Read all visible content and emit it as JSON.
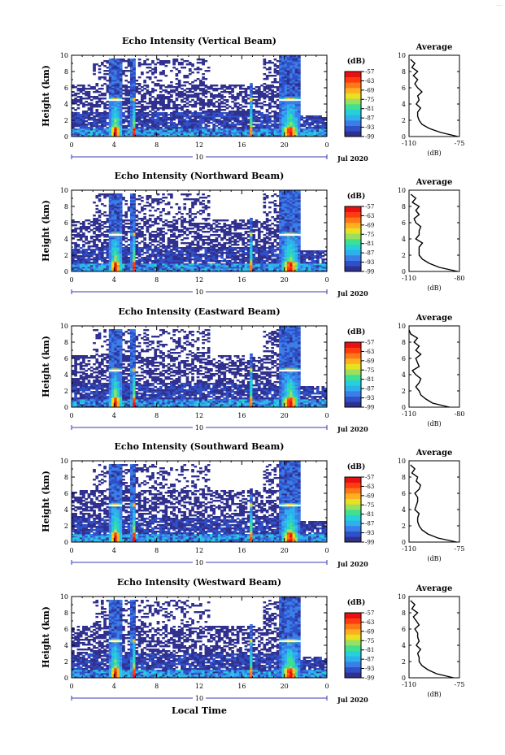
{
  "corner_mark": "—",
  "x_label": "Local Time",
  "date_label": "Jul 2020",
  "colorbar_unit": "(dB)",
  "colorbar_ticks": [
    "-57",
    "-63",
    "-69",
    "-75",
    "-81",
    "-87",
    "-93",
    "-99"
  ],
  "colors": {
    "scale": [
      "#30308f",
      "#3050c8",
      "#3a7ee8",
      "#2fb0ee",
      "#26d0d8",
      "#40e090",
      "#9ae060",
      "#e8e020",
      "#ffb020",
      "#ff7818",
      "#ff3c10",
      "#e81010"
    ]
  },
  "chart_data": [
    {
      "type": "heatmap",
      "title": "Echo Intensity (Vertical Beam)",
      "ylabel": "Height (km)",
      "xlim": [
        0,
        24
      ],
      "ylim": [
        0,
        10
      ],
      "xticks": [
        "0",
        "4",
        "8",
        "12",
        "16",
        "20",
        "0"
      ],
      "yticks": [
        "0",
        "2",
        "4",
        "6",
        "8",
        "10"
      ],
      "period_label": "10",
      "colorbar": {
        "unit": "(dB)",
        "min": -99,
        "max": -57
      },
      "features": {
        "rain_hours": [
          [
            3.5,
            4.8
          ],
          [
            5.6,
            6.1
          ],
          [
            16.8,
            17.0
          ],
          [
            19.6,
            21.5
          ]
        ],
        "bright_band_km": 4.5
      },
      "average_profile": {
        "title": "Average",
        "xlabel": "(dB)",
        "xlim": [
          -110,
          -75
        ],
        "xticks": [
          "-110",
          "-75"
        ],
        "yticks": [
          "0",
          "2",
          "4",
          "6",
          "8",
          "10"
        ],
        "height_km": [
          0,
          0.5,
          1,
          1.5,
          2,
          2.5,
          3,
          3.5,
          4,
          4.5,
          5,
          5.5,
          6,
          6.5,
          7,
          7.5,
          8,
          8.5,
          9,
          9.5
        ],
        "db": [
          -76,
          -88,
          -96,
          -101,
          -103,
          -104,
          -104,
          -102,
          -105,
          -103,
          -104,
          -101,
          -104,
          -106,
          -104,
          -107,
          -104,
          -108,
          -106,
          -109
        ]
      }
    },
    {
      "type": "heatmap",
      "title": "Echo Intensity (Northward Beam)",
      "ylabel": "Height (km)",
      "xlim": [
        0,
        24
      ],
      "ylim": [
        0,
        10
      ],
      "xticks": [
        "0",
        "4",
        "8",
        "12",
        "16",
        "20",
        "0"
      ],
      "yticks": [
        "0",
        "2",
        "4",
        "6",
        "8",
        "10"
      ],
      "period_label": "10",
      "colorbar": {
        "unit": "(dB)",
        "min": -99,
        "max": -57
      },
      "features": {
        "rain_hours": [
          [
            3.5,
            4.8
          ],
          [
            5.6,
            6.1
          ],
          [
            16.8,
            17.0
          ],
          [
            19.6,
            21.5
          ]
        ],
        "bright_band_km": 4.5
      },
      "average_profile": {
        "title": "Average",
        "xlabel": "(dB)",
        "xlim": [
          -110,
          -80
        ],
        "xticks": [
          "-110",
          "-80"
        ],
        "yticks": [
          "0",
          "2",
          "4",
          "6",
          "8",
          "10"
        ],
        "height_km": [
          0,
          0.5,
          1,
          1.5,
          2,
          2.5,
          3,
          3.5,
          4,
          4.5,
          5,
          5.5,
          6,
          6.5,
          7,
          7.5,
          8,
          8.5,
          9,
          9.5
        ],
        "db": [
          -81,
          -92,
          -98,
          -102,
          -104,
          -104,
          -104,
          -102,
          -106,
          -104,
          -104,
          -103,
          -106,
          -107,
          -104,
          -106,
          -104,
          -108,
          -106,
          -109
        ]
      }
    },
    {
      "type": "heatmap",
      "title": "Echo Intensity (Eastward Beam)",
      "ylabel": "Height (km)",
      "xlim": [
        0,
        24
      ],
      "ylim": [
        0,
        10
      ],
      "xticks": [
        "0",
        "4",
        "8",
        "12",
        "16",
        "20",
        "0"
      ],
      "yticks": [
        "0",
        "2",
        "4",
        "6",
        "8",
        "10"
      ],
      "period_label": "10",
      "colorbar": {
        "unit": "(dB)",
        "min": -99,
        "max": -57
      },
      "features": {
        "rain_hours": [
          [
            3.5,
            4.8
          ],
          [
            5.6,
            6.1
          ],
          [
            16.8,
            17.0
          ],
          [
            19.6,
            21.5
          ]
        ],
        "bright_band_km": 4.5
      },
      "average_profile": {
        "title": "Average",
        "xlabel": "(dB)",
        "xlim": [
          -110,
          -80
        ],
        "xticks": [
          "-110",
          "-80"
        ],
        "yticks": [
          "0",
          "2",
          "4",
          "6",
          "8",
          "10"
        ],
        "height_km": [
          0,
          0.5,
          1,
          1.5,
          2,
          2.5,
          3,
          3.5,
          4,
          4.5,
          5,
          5.5,
          6,
          6.5,
          7,
          7.5,
          8,
          8.5,
          9,
          9.5
        ],
        "db": [
          -86,
          -96,
          -100,
          -103,
          -104,
          -106,
          -104,
          -103,
          -106,
          -108,
          -104,
          -105,
          -106,
          -103,
          -106,
          -104,
          -107,
          -105,
          -109,
          -110
        ]
      }
    },
    {
      "type": "heatmap",
      "title": "Echo Intensity (Southward Beam)",
      "ylabel": "Height (km)",
      "xlim": [
        0,
        24
      ],
      "ylim": [
        0,
        10
      ],
      "xticks": [
        "0",
        "4",
        "8",
        "12",
        "16",
        "20",
        "0"
      ],
      "yticks": [
        "0",
        "2",
        "4",
        "6",
        "8",
        "10"
      ],
      "period_label": "10",
      "colorbar": {
        "unit": "(dB)",
        "min": -99,
        "max": -57
      },
      "features": {
        "rain_hours": [
          [
            3.5,
            4.8
          ],
          [
            5.6,
            6.1
          ],
          [
            16.8,
            17.0
          ],
          [
            19.6,
            21.5
          ]
        ],
        "bright_band_km": 4.5
      },
      "average_profile": {
        "title": "Average",
        "xlabel": "(dB)",
        "xlim": [
          -110,
          -75
        ],
        "xticks": [
          "-110",
          "-75"
        ],
        "yticks": [
          "0",
          "2",
          "4",
          "6",
          "8",
          "10"
        ],
        "height_km": [
          0,
          0.5,
          1,
          1.5,
          2,
          2.5,
          3,
          3.5,
          4,
          4.5,
          5,
          5.5,
          6,
          6.5,
          7,
          7.5,
          8,
          8.5,
          9,
          9.5
        ],
        "db": [
          -77,
          -90,
          -97,
          -101,
          -103,
          -104,
          -104,
          -103,
          -106,
          -105,
          -104,
          -104,
          -106,
          -103,
          -102,
          -105,
          -104,
          -108,
          -106,
          -109
        ]
      }
    },
    {
      "type": "heatmap",
      "title": "Echo Intensity (Westward Beam)",
      "ylabel": "Height (km)",
      "xlim": [
        0,
        24
      ],
      "ylim": [
        0,
        10
      ],
      "xticks": [
        "0",
        "4",
        "8",
        "12",
        "16",
        "20",
        "0"
      ],
      "yticks": [
        "0",
        "2",
        "4",
        "6",
        "8",
        "10"
      ],
      "period_label": "10",
      "colorbar": {
        "unit": "(dB)",
        "min": -99,
        "max": -57
      },
      "features": {
        "rain_hours": [
          [
            3.5,
            4.8
          ],
          [
            5.6,
            6.1
          ],
          [
            16.8,
            17.0
          ],
          [
            19.6,
            21.5
          ]
        ],
        "bright_band_km": 4.5
      },
      "average_profile": {
        "title": "Average",
        "xlabel": "(dB)",
        "xlim": [
          -110,
          -75
        ],
        "xticks": [
          "-110",
          "-75"
        ],
        "yticks": [
          "0",
          "2",
          "4",
          "6",
          "8",
          "10"
        ],
        "height_km": [
          0,
          0.5,
          1,
          1.5,
          2,
          2.5,
          3,
          3.5,
          4,
          4.5,
          5,
          5.5,
          6,
          6.5,
          7,
          7.5,
          8,
          8.5,
          9,
          9.5
        ],
        "db": [
          -79,
          -91,
          -97,
          -101,
          -103,
          -103,
          -104,
          -102,
          -105,
          -103,
          -104,
          -104,
          -106,
          -103,
          -105,
          -107,
          -104,
          -108,
          -106,
          -109
        ]
      }
    }
  ]
}
